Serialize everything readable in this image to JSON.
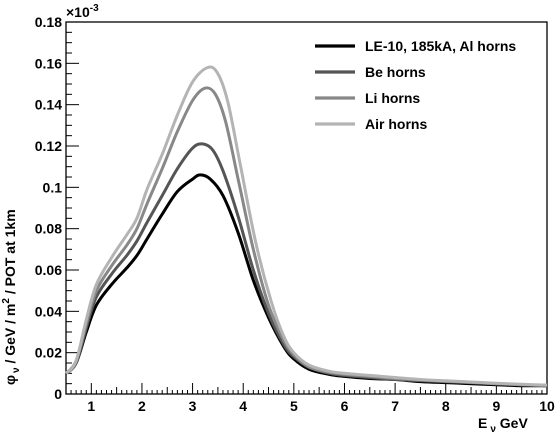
{
  "chart_data": {
    "type": "line",
    "xlabel_main": "E",
    "xlabel_sub": "ν",
    "xlabel_unit": " GeV",
    "ylabel_main": "φ",
    "ylabel_sub": "ν",
    "ylabel_rest": " / GeV / m",
    "ylabel_sup": "2",
    "ylabel_tail": " / POT at 1km",
    "y_multiplier_base": "×10",
    "y_multiplier_exp": "-3",
    "xlim": [
      0.5,
      10.0
    ],
    "ylim": [
      0,
      0.18
    ],
    "xticks": [
      1,
      2,
      3,
      4,
      5,
      6,
      7,
      8,
      9,
      10
    ],
    "yticks": [
      "0",
      "0.02",
      "0.04",
      "0.06",
      "0.08",
      "0.1",
      "0.12",
      "0.14",
      "0.16",
      "0.18"
    ],
    "grid": false,
    "legend_position": "top-right",
    "series": [
      {
        "name": "LE-10, 185kA, Al horns",
        "color": "#000000",
        "points": [
          [
            0.5,
            0.01
          ],
          [
            0.7,
            0.015
          ],
          [
            0.9,
            0.03
          ],
          [
            1.1,
            0.043
          ],
          [
            1.4,
            0.053
          ],
          [
            1.7,
            0.061
          ],
          [
            1.9,
            0.067
          ],
          [
            2.1,
            0.075
          ],
          [
            2.4,
            0.087
          ],
          [
            2.7,
            0.098
          ],
          [
            3.0,
            0.104
          ],
          [
            3.15,
            0.106
          ],
          [
            3.35,
            0.104
          ],
          [
            3.6,
            0.096
          ],
          [
            3.9,
            0.078
          ],
          [
            4.2,
            0.055
          ],
          [
            4.5,
            0.037
          ],
          [
            4.8,
            0.023
          ],
          [
            5.0,
            0.017
          ],
          [
            5.3,
            0.012
          ],
          [
            5.7,
            0.0095
          ],
          [
            6.0,
            0.0085
          ],
          [
            6.5,
            0.0075
          ],
          [
            7.0,
            0.007
          ],
          [
            7.5,
            0.006
          ],
          [
            8.0,
            0.0055
          ],
          [
            8.5,
            0.005
          ],
          [
            9.0,
            0.0045
          ],
          [
            9.5,
            0.004
          ],
          [
            10.0,
            0.004
          ]
        ]
      },
      {
        "name": "Be horns",
        "color": "#555555",
        "points": [
          [
            0.5,
            0.01
          ],
          [
            0.7,
            0.015
          ],
          [
            0.9,
            0.032
          ],
          [
            1.1,
            0.047
          ],
          [
            1.4,
            0.058
          ],
          [
            1.7,
            0.067
          ],
          [
            1.9,
            0.074
          ],
          [
            2.1,
            0.083
          ],
          [
            2.4,
            0.096
          ],
          [
            2.7,
            0.109
          ],
          [
            3.0,
            0.119
          ],
          [
            3.2,
            0.121
          ],
          [
            3.4,
            0.118
          ],
          [
            3.6,
            0.108
          ],
          [
            3.9,
            0.086
          ],
          [
            4.2,
            0.06
          ],
          [
            4.5,
            0.039
          ],
          [
            4.8,
            0.024
          ],
          [
            5.0,
            0.018
          ],
          [
            5.3,
            0.013
          ],
          [
            5.7,
            0.01
          ],
          [
            6.0,
            0.009
          ],
          [
            6.5,
            0.008
          ],
          [
            7.0,
            0.007
          ],
          [
            7.5,
            0.0065
          ],
          [
            8.0,
            0.006
          ],
          [
            8.5,
            0.0055
          ],
          [
            9.0,
            0.005
          ],
          [
            9.5,
            0.0045
          ],
          [
            10.0,
            0.004
          ]
        ]
      },
      {
        "name": "Li horns",
        "color": "#888888",
        "points": [
          [
            0.5,
            0.01
          ],
          [
            0.7,
            0.016
          ],
          [
            0.9,
            0.034
          ],
          [
            1.1,
            0.05
          ],
          [
            1.4,
            0.062
          ],
          [
            1.7,
            0.072
          ],
          [
            1.9,
            0.08
          ],
          [
            2.1,
            0.092
          ],
          [
            2.4,
            0.109
          ],
          [
            2.7,
            0.127
          ],
          [
            3.0,
            0.142
          ],
          [
            3.25,
            0.148
          ],
          [
            3.45,
            0.145
          ],
          [
            3.65,
            0.132
          ],
          [
            3.9,
            0.104
          ],
          [
            4.2,
            0.07
          ],
          [
            4.5,
            0.043
          ],
          [
            4.8,
            0.026
          ],
          [
            5.0,
            0.019
          ],
          [
            5.3,
            0.013
          ],
          [
            5.7,
            0.0105
          ],
          [
            6.0,
            0.0095
          ],
          [
            6.5,
            0.0085
          ],
          [
            7.0,
            0.0075
          ],
          [
            7.5,
            0.0068
          ],
          [
            8.0,
            0.0062
          ],
          [
            8.5,
            0.0056
          ],
          [
            9.0,
            0.005
          ],
          [
            9.5,
            0.0045
          ],
          [
            10.0,
            0.0042
          ]
        ]
      },
      {
        "name": "Air horns",
        "color": "#b4b4b4",
        "points": [
          [
            0.5,
            0.01
          ],
          [
            0.7,
            0.016
          ],
          [
            0.9,
            0.036
          ],
          [
            1.1,
            0.053
          ],
          [
            1.4,
            0.066
          ],
          [
            1.7,
            0.077
          ],
          [
            1.9,
            0.085
          ],
          [
            2.1,
            0.099
          ],
          [
            2.4,
            0.116
          ],
          [
            2.7,
            0.135
          ],
          [
            3.0,
            0.151
          ],
          [
            3.3,
            0.158
          ],
          [
            3.5,
            0.155
          ],
          [
            3.7,
            0.141
          ],
          [
            3.95,
            0.11
          ],
          [
            4.25,
            0.073
          ],
          [
            4.55,
            0.045
          ],
          [
            4.8,
            0.028
          ],
          [
            5.0,
            0.02
          ],
          [
            5.3,
            0.014
          ],
          [
            5.7,
            0.011
          ],
          [
            6.0,
            0.01
          ],
          [
            6.5,
            0.009
          ],
          [
            7.0,
            0.008
          ],
          [
            7.5,
            0.007
          ],
          [
            8.0,
            0.0064
          ],
          [
            8.5,
            0.0058
          ],
          [
            9.0,
            0.0052
          ],
          [
            9.5,
            0.0047
          ],
          [
            10.0,
            0.0043
          ]
        ]
      }
    ]
  }
}
